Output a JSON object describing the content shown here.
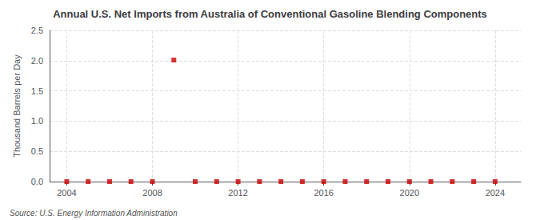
{
  "chart_data": {
    "type": "scatter",
    "title": "Annual U.S. Net Imports from Australia of Conventional Gasoline Blending Components",
    "ylabel": "Thousand Barrels per Day",
    "annotations": [
      "Source: U.S. Energy Information Administration"
    ],
    "x": [
      2004,
      2005,
      2006,
      2007,
      2008,
      2009,
      2010,
      2011,
      2012,
      2013,
      2014,
      2015,
      2016,
      2017,
      2018,
      2019,
      2020,
      2021,
      2022,
      2023,
      2024
    ],
    "values": [
      0,
      0,
      0,
      0,
      0,
      2.01,
      0,
      0,
      0,
      0,
      0,
      0,
      0,
      0,
      0,
      0,
      0,
      0,
      0,
      0,
      0
    ],
    "color": "#cc0000",
    "marker": "square",
    "xlim": [
      2003.2,
      2025.2
    ],
    "xticks": [
      2004,
      2008,
      2012,
      2016,
      2020,
      2024
    ],
    "ylim": [
      0.0,
      2.5
    ],
    "yticks": [
      {
        "value": 0.0,
        "label": "0.0"
      },
      0.5,
      {
        "value": 1.0,
        "label": "1.0"
      },
      1.5,
      {
        "value": 2.0,
        "label": "2.0"
      },
      2.5
    ],
    "grid": true
  }
}
